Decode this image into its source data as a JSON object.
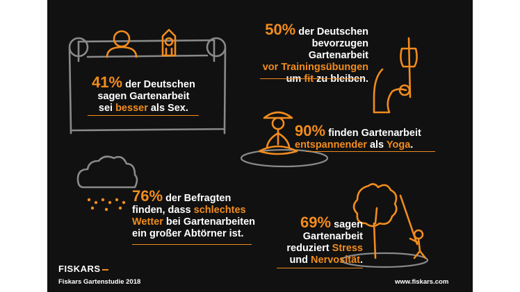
{
  "colors": {
    "accent": "#f28c1e",
    "background": "#111111",
    "text": "#ffffff",
    "sketch": "#8a8a8a"
  },
  "stats": {
    "s41": {
      "pct": "41%",
      "t1": " der Deutschen",
      "t2": "sagen Gartenarbeit",
      "t3a": "sei ",
      "t3hl": "besser",
      "t3b": " als Sex."
    },
    "s50": {
      "pct": "50%",
      "t1": " der Deutschen",
      "t2": "bevorzugen Gartenarbeit",
      "t3hl": "vor Trainingsübungen",
      "t4a": "um ",
      "t4hl": "fit",
      "t4b": " zu bleiben."
    },
    "s90": {
      "pct": "90%",
      "t1": " finden Gartenarbeit",
      "t2hl": "entspannender",
      "t2a": " als ",
      "t2hl2": "Yoga",
      "t2b": "."
    },
    "s76": {
      "pct": "76%",
      "t1": " der Befragten",
      "t2a": "finden, dass ",
      "t2hl": "schlechtes",
      "t3hl": "Wetter",
      "t3a": " bei Gartenarbeiten",
      "t4": "ein großer Abtörner ist."
    },
    "s69": {
      "pct": "69%",
      "t1": " sagen",
      "t2": "Gartenarbeit",
      "t3": "reduziert ",
      "t3hl": "Stress",
      "t4a": "und ",
      "t4hl": "Nervosität",
      "t4b": "."
    }
  },
  "footer": {
    "brand": "FISKARS",
    "study": "Fiskars Gartenstudie 2018",
    "url": "www.fiskars.com"
  },
  "icons": [
    "sofa-icon",
    "couple-in-bed-icon",
    "axe-arm-icon",
    "yoga-person-icon",
    "rain-cloud-icon",
    "tree-pruner-icon",
    "fiskars-logo-icon"
  ]
}
